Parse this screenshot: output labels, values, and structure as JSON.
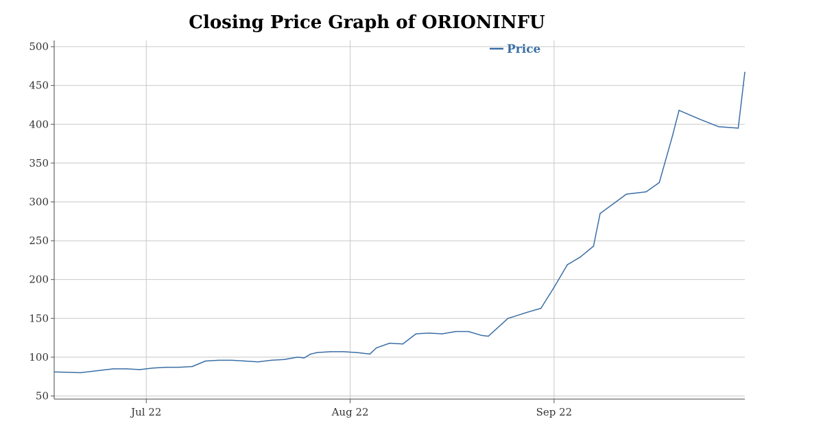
{
  "chart_data": {
    "type": "line",
    "title": "Closing Price Graph of ORIONINFU",
    "xlabel": "",
    "ylabel": "",
    "ylim": [
      46,
      508
    ],
    "yticks": [
      50,
      100,
      150,
      200,
      250,
      300,
      350,
      400,
      450,
      500
    ],
    "xlim": [
      "2022-06-17",
      "2022-09-30"
    ],
    "xticks": [
      {
        "label": "Jul 22",
        "date": "2022-07-01"
      },
      {
        "label": "Aug 22",
        "date": "2022-08-01"
      },
      {
        "label": "Sep 22",
        "date": "2022-09-01"
      }
    ],
    "grid": true,
    "legend_position": "top-right",
    "color": "#3a6ea5",
    "series": [
      {
        "name": "Price",
        "x": [
          "2022-06-17",
          "2022-06-21",
          "2022-06-24",
          "2022-06-26",
          "2022-06-28",
          "2022-06-30",
          "2022-07-02",
          "2022-07-04",
          "2022-07-06",
          "2022-07-08",
          "2022-07-10",
          "2022-07-12",
          "2022-07-14",
          "2022-07-16",
          "2022-07-18",
          "2022-07-20",
          "2022-07-22",
          "2022-07-24",
          "2022-07-25",
          "2022-07-26",
          "2022-07-27",
          "2022-07-29",
          "2022-07-31",
          "2022-08-02",
          "2022-08-04",
          "2022-08-05",
          "2022-08-07",
          "2022-08-09",
          "2022-08-11",
          "2022-08-13",
          "2022-08-15",
          "2022-08-17",
          "2022-08-19",
          "2022-08-21",
          "2022-08-22",
          "2022-08-25",
          "2022-08-28",
          "2022-08-30",
          "2022-09-01",
          "2022-09-03",
          "2022-09-05",
          "2022-09-07",
          "2022-09-08",
          "2022-09-12",
          "2022-09-15",
          "2022-09-17",
          "2022-09-19",
          "2022-09-20",
          "2022-09-23",
          "2022-09-26",
          "2022-09-29",
          "2022-09-30"
        ],
        "values": [
          81,
          80,
          83,
          85,
          85,
          84,
          86,
          87,
          87,
          88,
          95,
          96,
          96,
          95,
          94,
          96,
          97,
          100,
          99,
          104,
          106,
          107,
          107,
          106,
          104,
          112,
          118,
          117,
          130,
          131,
          130,
          133,
          133,
          128,
          127,
          150,
          158,
          163,
          190,
          219,
          229,
          243,
          285,
          310,
          313,
          325,
          385,
          418,
          407,
          397,
          395,
          467
        ]
      }
    ]
  }
}
